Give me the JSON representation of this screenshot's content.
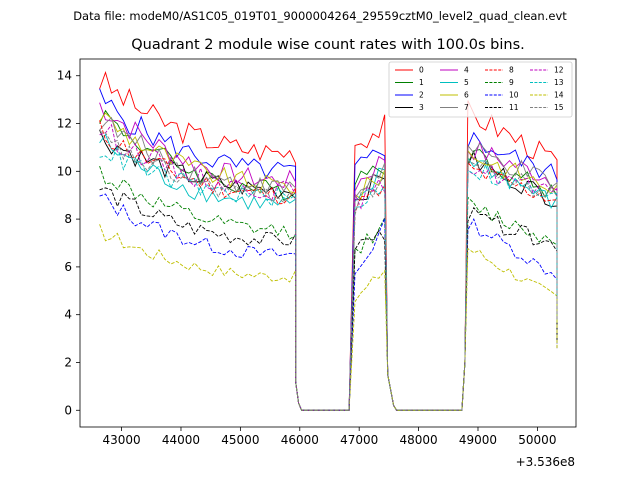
{
  "chart_data": {
    "type": "line",
    "suptitle": "Data file: modeM0/AS1C05_019T01_9000004264_29559cztM0_level2_quad_clean.evt",
    "title": "Quadrant 2 module wise count rates with 100.0s bins.",
    "xlabel": "",
    "ylabel": "",
    "x_offset_label": "+3.536e8",
    "xlim": [
      42300,
      50650
    ],
    "ylim": [
      -0.7,
      14.7
    ],
    "xticks": [
      43000,
      44000,
      45000,
      46000,
      47000,
      48000,
      49000,
      50000
    ],
    "yticks": [
      0,
      2,
      4,
      6,
      8,
      10,
      12,
      14
    ],
    "legend_position": "top-right",
    "time_bins": {
      "segments": [
        {
          "start": 42630,
          "end": 45930,
          "step": 100,
          "note": "elevated"
        },
        {
          "start": 46030,
          "end": 46830,
          "step": 100,
          "note": "zero"
        },
        {
          "start": 46930,
          "end": 47430,
          "step": 100,
          "note": "elevated"
        },
        {
          "start": 47630,
          "end": 48730,
          "step": 100,
          "note": "zero"
        },
        {
          "start": 48830,
          "end": 50330,
          "step": 100,
          "note": "elevated"
        }
      ],
      "transition_points": [
        [
          45930,
          1.2
        ],
        [
          45980,
          0.3
        ],
        [
          47480,
          1.5
        ],
        [
          47580,
          0.2
        ],
        [
          48780,
          2.0
        ],
        [
          50330,
          3.4
        ]
      ]
    },
    "series": [
      {
        "name": "0",
        "color": "#ff0000",
        "dash": "solid",
        "levels": [
          13.8,
          10.8,
          11.2,
          11.9,
          12.5,
          10.4
        ]
      },
      {
        "name": "1",
        "color": "#008000",
        "dash": "solid",
        "levels": [
          12.5,
          9.2,
          9.8,
          10.3,
          10.8,
          9.0
        ]
      },
      {
        "name": "2",
        "color": "#0000ff",
        "dash": "solid",
        "levels": [
          13.0,
          10.0,
          10.0,
          11.0,
          11.4,
          9.8
        ]
      },
      {
        "name": "3",
        "color": "#000000",
        "dash": "solid",
        "levels": [
          11.5,
          9.2,
          8.8,
          9.9,
          10.5,
          8.8
        ]
      },
      {
        "name": "4",
        "color": "#bf00bf",
        "dash": "solid",
        "levels": [
          12.8,
          9.6,
          9.4,
          10.6,
          11.0,
          9.6
        ]
      },
      {
        "name": "5",
        "color": "#00bfbf",
        "dash": "solid",
        "levels": [
          11.3,
          8.6,
          8.4,
          10.1,
          10.6,
          8.6
        ]
      },
      {
        "name": "6",
        "color": "#bfbf00",
        "dash": "solid",
        "levels": [
          12.4,
          9.4,
          8.9,
          10.0,
          10.8,
          9.2
        ]
      },
      {
        "name": "7",
        "color": "#808080",
        "dash": "solid",
        "levels": [
          12.2,
          9.3,
          9.0,
          10.2,
          10.9,
          9.4
        ]
      },
      {
        "name": "8",
        "color": "#ff0000",
        "dash": "dashed",
        "levels": [
          11.7,
          9.0,
          8.6,
          9.2,
          10.1,
          8.8
        ]
      },
      {
        "name": "9",
        "color": "#008000",
        "dash": "dashed",
        "levels": [
          10.0,
          7.5,
          6.6,
          7.8,
          8.6,
          7.0
        ]
      },
      {
        "name": "10",
        "color": "#0000ff",
        "dash": "dashed",
        "levels": [
          8.9,
          6.5,
          5.7,
          7.7,
          7.9,
          5.6
        ]
      },
      {
        "name": "11",
        "color": "#000000",
        "dash": "dashed",
        "levels": [
          9.3,
          7.1,
          6.9,
          7.4,
          8.2,
          6.9
        ]
      },
      {
        "name": "12",
        "color": "#bf00bf",
        "dash": "dashed",
        "levels": [
          11.8,
          9.2,
          8.7,
          9.4,
          10.3,
          8.9
        ]
      },
      {
        "name": "13",
        "color": "#00bfbf",
        "dash": "dashed",
        "levels": [
          11.0,
          8.9,
          8.4,
          9.6,
          10.2,
          8.8
        ]
      },
      {
        "name": "14",
        "color": "#bfbf00",
        "dash": "dashed",
        "levels": [
          7.5,
          5.6,
          4.6,
          5.9,
          6.8,
          4.7
        ]
      },
      {
        "name": "15",
        "color": "#808080",
        "dash": "dashed",
        "levels": [
          11.4,
          9.0,
          8.5,
          9.8,
          10.4,
          8.9
        ]
      }
    ],
    "levels_note": "levels = [first segment start, first segment end, second segment start, second segment end, third segment start, third segment end] in counts/s"
  }
}
